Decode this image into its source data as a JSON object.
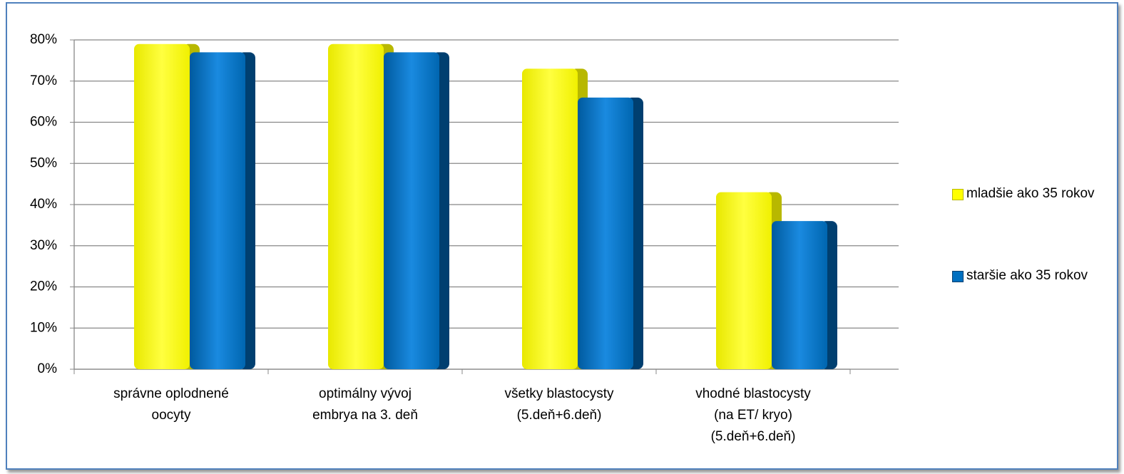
{
  "chart_data": {
    "type": "bar",
    "categories": [
      "správne oplodnené\noocyty",
      "optimálny vývoj\nembrya na 3. deň",
      "všetky blastocysty\n(5.deň+6.deň)",
      "vhodné blastocysty\n(na ET/ kryo)\n(5.deň+6.deň)"
    ],
    "series": [
      {
        "name": "mladšie ako 35 rokov",
        "color": "#ffff00",
        "values": [
          79,
          79,
          73,
          43
        ]
      },
      {
        "name": "staršie ako 35 rokov",
        "color": "#0070c0",
        "values": [
          77,
          77,
          66,
          36
        ]
      }
    ],
    "ylim": [
      0,
      80
    ],
    "yticks": [
      {
        "value": 0,
        "label": "0%"
      },
      {
        "value": 10,
        "label": "10%"
      },
      {
        "value": 20,
        "label": "20%"
      },
      {
        "value": 30,
        "label": "30%"
      },
      {
        "value": 40,
        "label": "40%"
      },
      {
        "value": 50,
        "label": "50%"
      },
      {
        "value": 60,
        "label": "60%"
      },
      {
        "value": 70,
        "label": "70%"
      },
      {
        "value": 80,
        "label": "80%"
      }
    ],
    "grid": true,
    "legend": "right"
  }
}
